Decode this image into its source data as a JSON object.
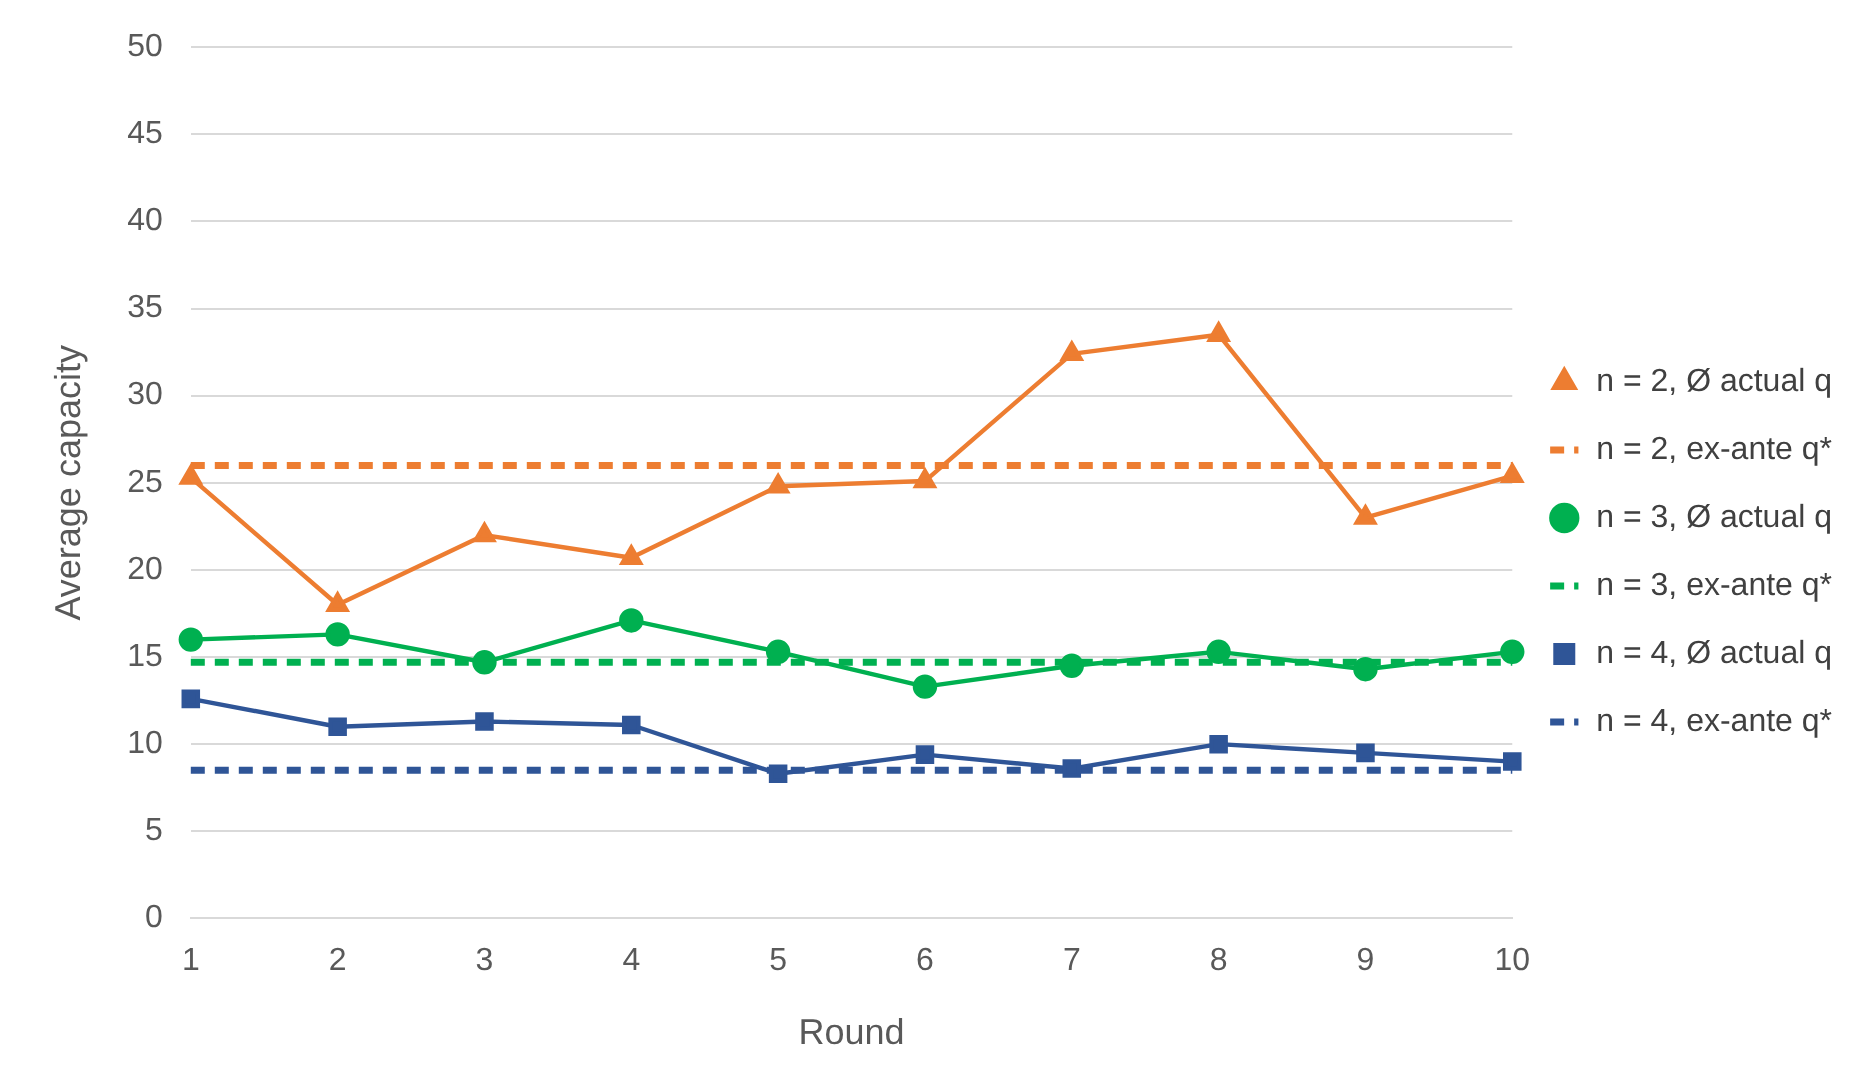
{
  "chart_data": {
    "type": "line",
    "xlabel": "Round",
    "ylabel": "Average capacity",
    "categories": [
      "1",
      "2",
      "3",
      "4",
      "5",
      "6",
      "7",
      "8",
      "9",
      "10"
    ],
    "ylim": [
      0,
      50
    ],
    "yticks": [
      0,
      5,
      10,
      15,
      20,
      25,
      30,
      35,
      40,
      45,
      50
    ],
    "grid": "y",
    "legend": "right",
    "series": [
      {
        "name": "n = 2, Ø actual q",
        "color": "#ed7d31",
        "marker": "triangle",
        "line_style": "solid",
        "values": [
          25.3,
          18,
          22,
          20.7,
          24.8,
          25.1,
          32.4,
          33.5,
          23,
          25.4
        ]
      },
      {
        "name": "n = 2, ex-ante q*",
        "color": "#ed7d31",
        "marker": "none",
        "line_style": "dashed",
        "values": [
          26,
          26,
          26,
          26,
          26,
          26,
          26,
          26,
          26,
          26
        ]
      },
      {
        "name": "n = 3, Ø actual q",
        "color": "#00b050",
        "marker": "circle",
        "line_style": "solid",
        "values": [
          16,
          16.3,
          14.7,
          17.1,
          15.3,
          13.3,
          14.5,
          15.3,
          14.3,
          15.3
        ]
      },
      {
        "name": "n = 3, ex-ante q*",
        "color": "#00b050",
        "marker": "none",
        "line_style": "dashed",
        "values": [
          14.7,
          14.7,
          14.7,
          14.7,
          14.7,
          14.7,
          14.7,
          14.7,
          14.7,
          14.7
        ]
      },
      {
        "name": "n = 4, Ø actual q",
        "color": "#2f5597",
        "marker": "square",
        "line_style": "solid",
        "values": [
          12.6,
          11,
          11.3,
          11.1,
          8.3,
          9.4,
          8.6,
          10,
          9.5,
          9
        ]
      },
      {
        "name": "n = 4, ex-ante q*",
        "color": "#2f5597",
        "marker": "none",
        "line_style": "dashed",
        "values": [
          8.5,
          8.5,
          8.5,
          8.5,
          8.5,
          8.5,
          8.5,
          8.5,
          8.5,
          8.5
        ]
      }
    ]
  }
}
